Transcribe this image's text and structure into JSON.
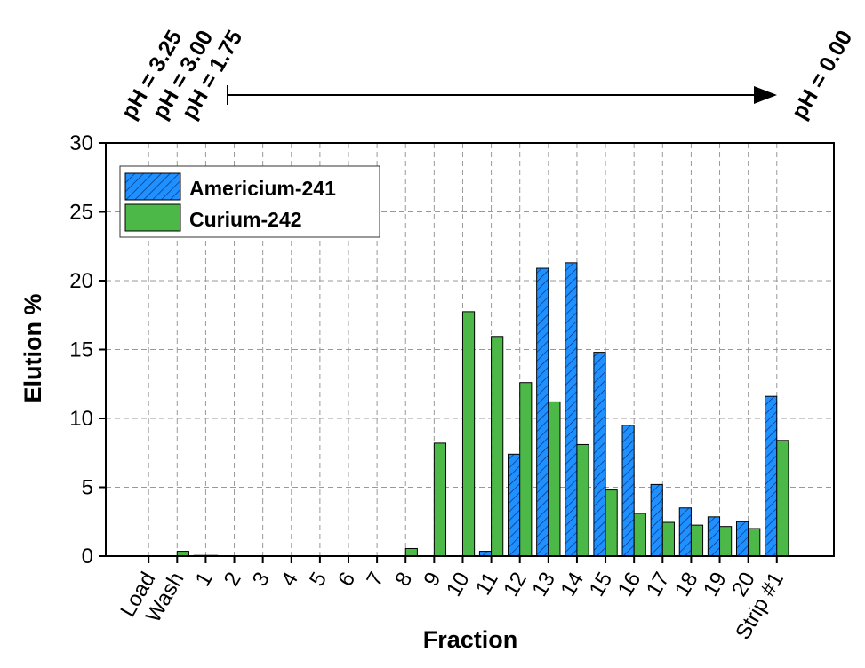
{
  "chart_data": {
    "type": "bar",
    "xlabel": "Fraction",
    "ylabel": "Elution %",
    "ylim": [
      0,
      30
    ],
    "yticks": [
      "0",
      "5",
      "10",
      "15",
      "20",
      "25",
      "30"
    ],
    "grid": true,
    "legend_position": "top-left",
    "categories": [
      "Load",
      "Wash",
      "1",
      "2",
      "3",
      "4",
      "5",
      "6",
      "7",
      "8",
      "9",
      "10",
      "11",
      "12",
      "13",
      "14",
      "15",
      "16",
      "17",
      "18",
      "19",
      "20",
      "Strip #1"
    ],
    "series": [
      {
        "name": "Americium-241",
        "color": "#1e90ff",
        "pattern": "hatched",
        "values": [
          0,
          0,
          0.05,
          0,
          0,
          0,
          0,
          0,
          0,
          0,
          0,
          0,
          0.35,
          7.4,
          20.9,
          21.3,
          14.8,
          9.5,
          5.2,
          3.5,
          2.85,
          2.5,
          11.6
        ]
      },
      {
        "name": "Curium-242",
        "color": "#4cb848",
        "pattern": "solid",
        "values": [
          0,
          0.35,
          0.05,
          0,
          0,
          0,
          0,
          0,
          0,
          0.55,
          8.2,
          17.75,
          15.95,
          12.6,
          11.2,
          8.1,
          4.8,
          3.1,
          2.45,
          2.25,
          2.15,
          2.0,
          8.4
        ]
      }
    ],
    "annotations": {
      "ph_labels": [
        "pH = 3.25",
        "pH = 3.00",
        "pH = 1.75"
      ],
      "ph_end": "pH = 0.00"
    }
  }
}
